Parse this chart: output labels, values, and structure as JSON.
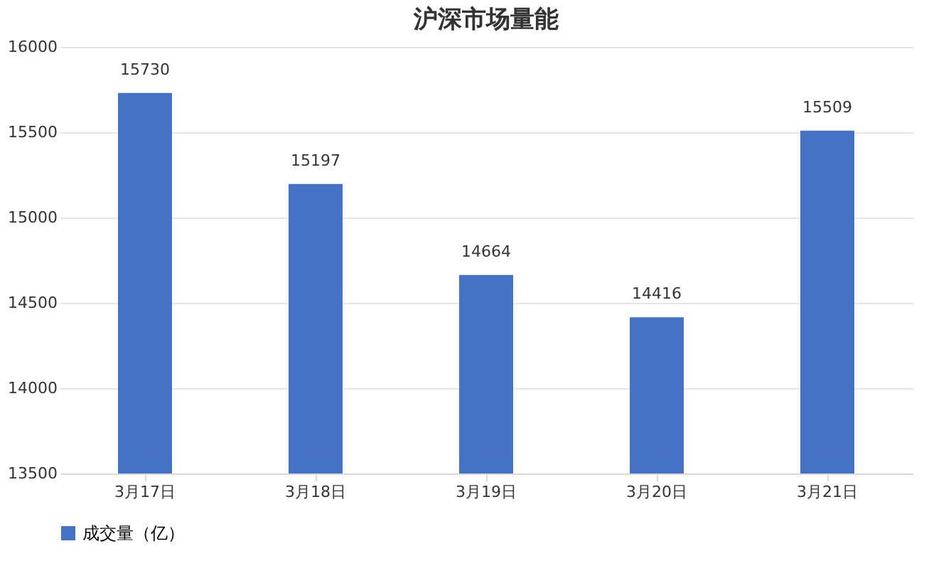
{
  "chart_data": {
    "type": "bar",
    "title": "沪深市场量能",
    "categories": [
      "3月17日",
      "3月18日",
      "3月19日",
      "3月20日",
      "3月21日"
    ],
    "series": [
      {
        "name": "成交量（亿）",
        "color": "#4472c4",
        "values": [
          15730,
          15197,
          14664,
          14416,
          15509
        ]
      }
    ],
    "ylim": [
      13500,
      16000
    ],
    "yticks": [
      13500,
      14000,
      14500,
      15000,
      15500,
      16000
    ],
    "grid": "y",
    "legend": "bottom",
    "data_labels": true
  }
}
